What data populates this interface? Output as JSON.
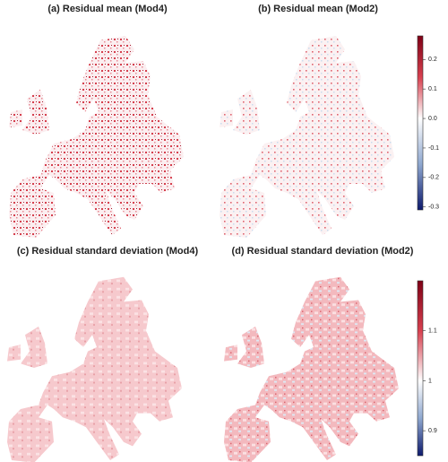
{
  "panels": [
    {
      "title": "(a) Residual mean (Mod4)"
    },
    {
      "title": "(b) Residual mean (Mod2)"
    },
    {
      "title": "(c) Residual standard deviation (Mod4)"
    },
    {
      "title": "(d) Residual standard deviation (Mod2)"
    }
  ],
  "colorbars": [
    {
      "lim": [
        -0.31,
        0.28
      ],
      "ticks": [
        -0.3,
        -0.2,
        -0.1,
        {
          "value": 0,
          "label": "0.0"
        },
        0.1,
        0.2
      ]
    },
    {
      "lim": [
        0.85,
        1.2
      ],
      "ticks": [
        0.9,
        1,
        1.1
      ]
    }
  ]
}
